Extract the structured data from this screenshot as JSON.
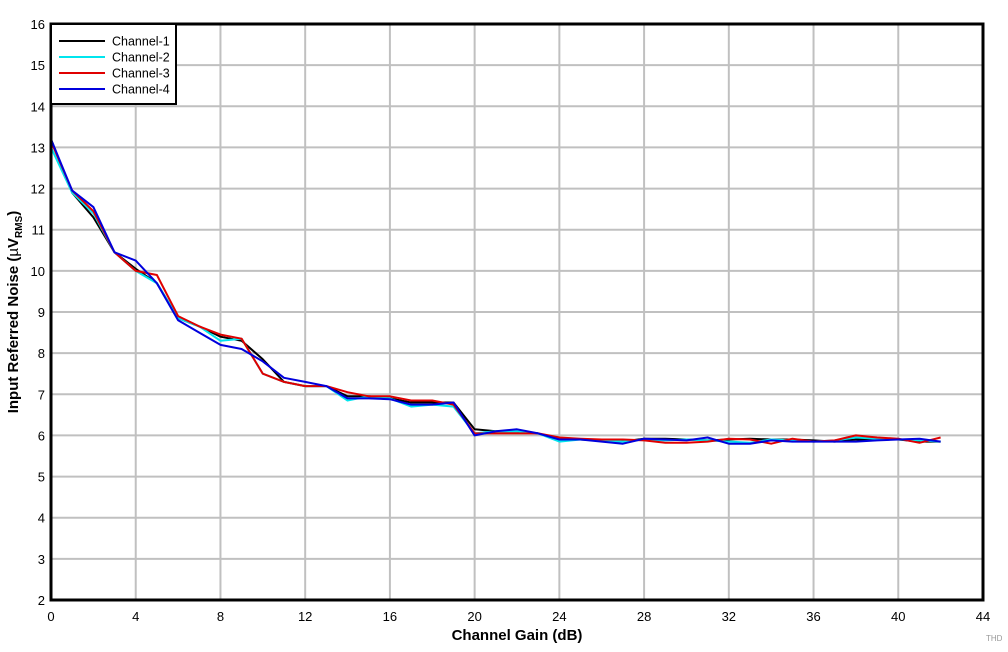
{
  "chart_data": {
    "type": "line",
    "title": "",
    "xlabel": "Channel Gain (dB)",
    "ylabel": "Input Referred Noise (µV_RMS)",
    "ylabel_main": "Input Referred Noise (",
    "ylabel_mu": "µ",
    "ylabel_v": "V",
    "ylabel_sub": "RMS",
    "ylabel_close": ")",
    "xlim": [
      0,
      44
    ],
    "ylim": [
      2,
      16
    ],
    "xticks": [
      0,
      4,
      8,
      12,
      16,
      20,
      24,
      28,
      32,
      36,
      40,
      44
    ],
    "yticks": [
      2,
      3,
      4,
      5,
      6,
      7,
      8,
      9,
      10,
      11,
      12,
      13,
      14,
      15,
      16
    ],
    "grid": true,
    "legend_position": "upper-left",
    "x": [
      0,
      1,
      2,
      3,
      4,
      5,
      6,
      7,
      8,
      9,
      10,
      11,
      12,
      13,
      14,
      15,
      16,
      17,
      18,
      19,
      20,
      21,
      22,
      23,
      24,
      25,
      26,
      27,
      28,
      29,
      30,
      31,
      32,
      33,
      34,
      35,
      36,
      37,
      38,
      39,
      40,
      41,
      42
    ],
    "series": [
      {
        "name": "Channel-1",
        "color": "#000000",
        "values": [
          13.2,
          11.9,
          11.3,
          10.45,
          10.05,
          9.7,
          8.85,
          8.65,
          8.4,
          8.3,
          7.85,
          7.3,
          7.2,
          7.2,
          6.95,
          6.95,
          6.9,
          6.8,
          6.8,
          6.8,
          6.15,
          6.1,
          6.1,
          6.05,
          5.9,
          5.9,
          5.88,
          5.85,
          5.92,
          5.92,
          5.9,
          5.88,
          5.9,
          5.92,
          5.9,
          5.9,
          5.88,
          5.85,
          5.9,
          5.9,
          5.9,
          5.85,
          5.85
        ]
      },
      {
        "name": "Channel-2",
        "color": "#00e5ee",
        "values": [
          13.0,
          11.9,
          11.4,
          10.45,
          10.0,
          9.7,
          8.85,
          8.65,
          8.3,
          8.35,
          7.5,
          7.3,
          7.2,
          7.2,
          6.85,
          6.95,
          6.9,
          6.7,
          6.75,
          6.7,
          6.05,
          6.1,
          6.1,
          6.05,
          5.85,
          5.9,
          5.88,
          5.85,
          5.9,
          5.88,
          5.9,
          5.88,
          5.85,
          5.82,
          5.9,
          5.88,
          5.85,
          5.88,
          5.95,
          5.92,
          5.9,
          5.88,
          5.85
        ]
      },
      {
        "name": "Channel-3",
        "color": "#e00000",
        "values": [
          13.15,
          11.95,
          11.45,
          10.45,
          10.0,
          9.9,
          8.9,
          8.65,
          8.45,
          8.35,
          7.5,
          7.3,
          7.2,
          7.2,
          7.05,
          6.95,
          6.95,
          6.85,
          6.85,
          6.75,
          6.05,
          6.05,
          6.05,
          6.05,
          5.95,
          5.92,
          5.9,
          5.9,
          5.88,
          5.82,
          5.82,
          5.85,
          5.92,
          5.9,
          5.8,
          5.92,
          5.85,
          5.88,
          6.0,
          5.95,
          5.92,
          5.82,
          5.95
        ]
      },
      {
        "name": "Channel-4",
        "color": "#0000dd",
        "values": [
          13.2,
          11.95,
          11.55,
          10.45,
          10.25,
          9.7,
          8.8,
          8.5,
          8.2,
          8.1,
          7.8,
          7.4,
          7.3,
          7.2,
          6.9,
          6.9,
          6.88,
          6.75,
          6.75,
          6.8,
          6.0,
          6.1,
          6.15,
          6.05,
          5.9,
          5.9,
          5.85,
          5.8,
          5.92,
          5.9,
          5.88,
          5.95,
          5.8,
          5.8,
          5.88,
          5.85,
          5.85,
          5.85,
          5.85,
          5.88,
          5.9,
          5.92,
          5.85
        ]
      }
    ],
    "watermark": "THD"
  }
}
